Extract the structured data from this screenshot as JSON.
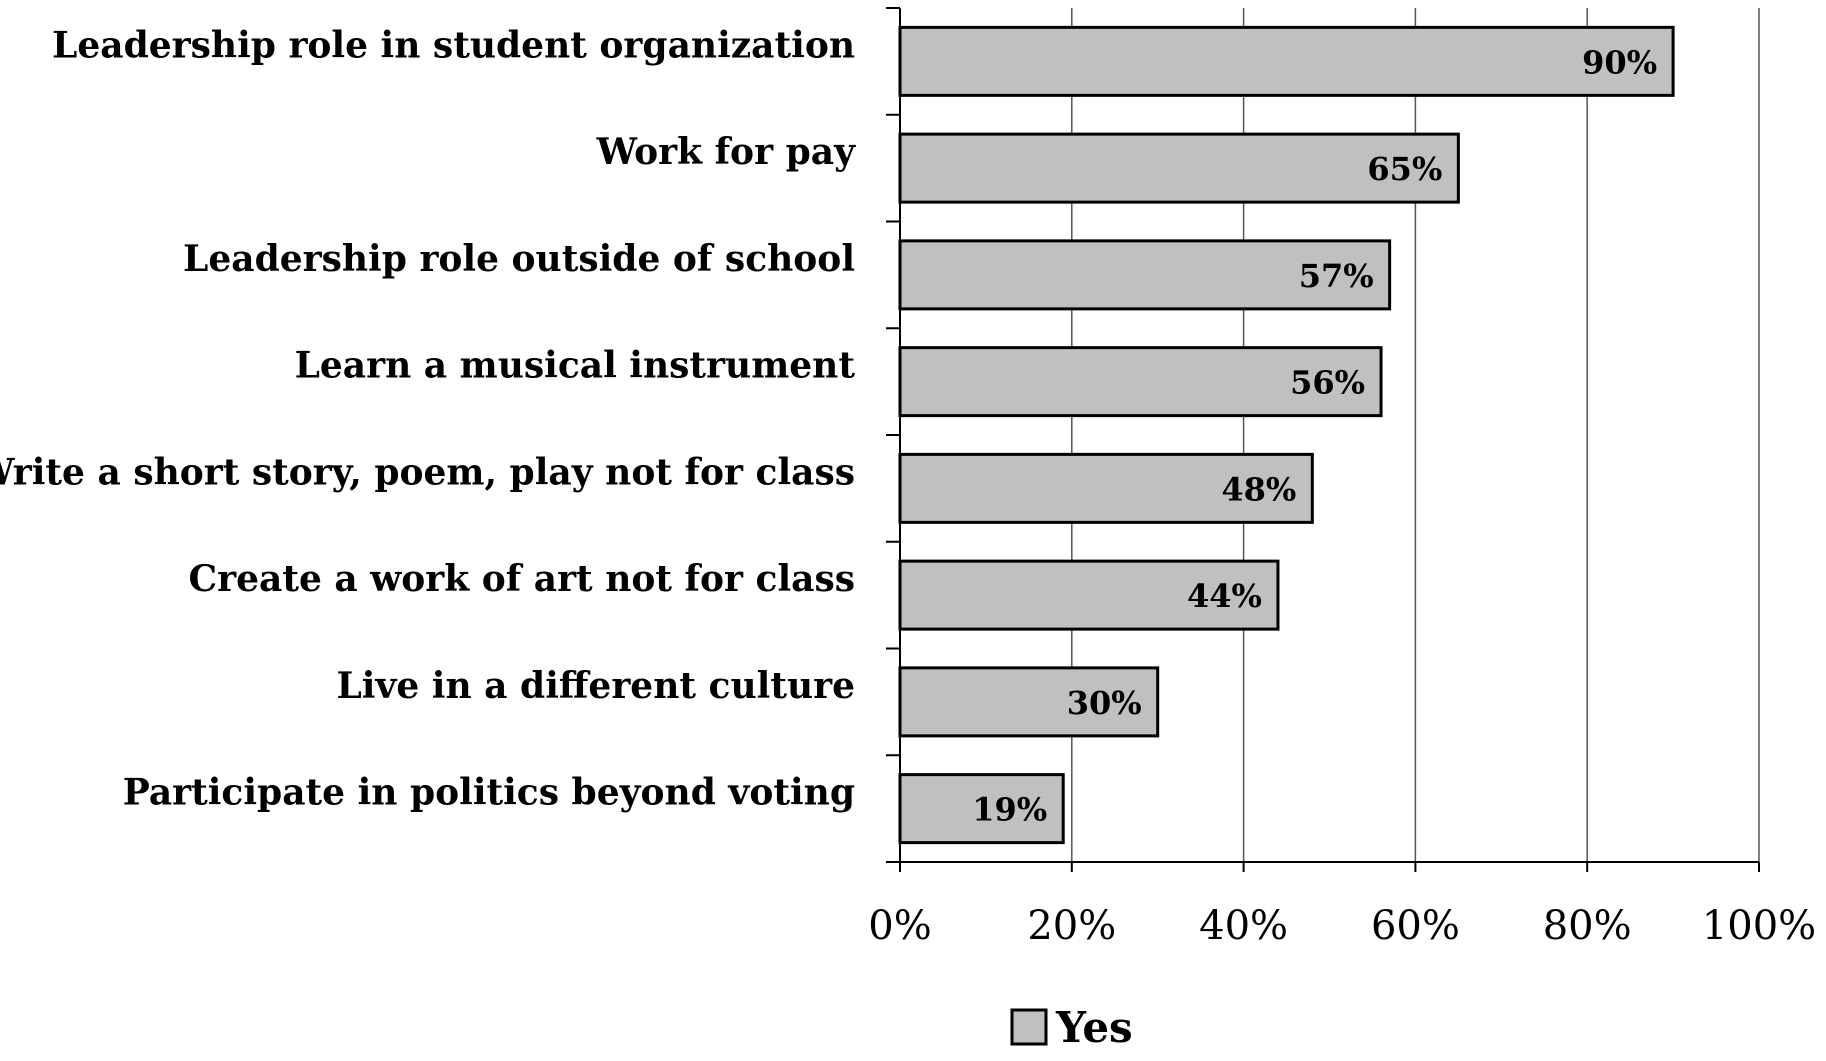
{
  "chart_data": {
    "type": "bar",
    "orientation": "horizontal",
    "categories": [
      "Leadership role in student organization",
      "Work for pay",
      "Leadership role outside of school",
      "Learn a musical instrument",
      "Write a short story, poem, play not for class",
      "Create a work of art not for class",
      "Live in a different culture",
      "Participate in politics beyond voting"
    ],
    "series": [
      {
        "name": "Yes",
        "values": [
          90,
          65,
          57,
          56,
          48,
          44,
          30,
          19
        ],
        "data_labels": [
          "90%",
          "65%",
          "57%",
          "56%",
          "48%",
          "44%",
          "30%",
          "19%"
        ],
        "color": "#c0c0c0"
      }
    ],
    "xlim": [
      0,
      100
    ],
    "xticks": [
      0,
      20,
      40,
      60,
      80,
      100
    ],
    "xtick_labels": [
      "0%",
      "20%",
      "40%",
      "60%",
      "80%",
      "100%"
    ],
    "grid": "vertical",
    "legend": {
      "position": "bottom",
      "entries": [
        "Yes"
      ]
    },
    "colors": {
      "bar_fill": "#c0c0c0",
      "bar_stroke": "#000000",
      "grid": "#555555",
      "text": "#000000"
    },
    "title": "",
    "xlabel": "",
    "ylabel": ""
  }
}
